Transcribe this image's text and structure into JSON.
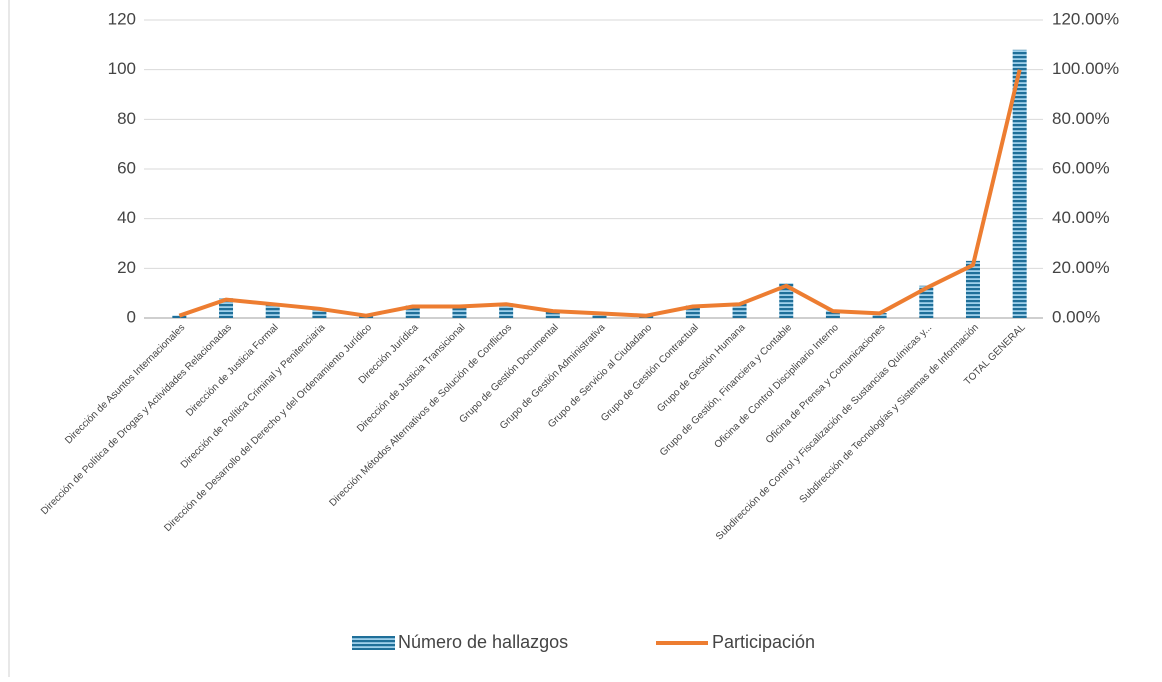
{
  "chart_data": {
    "type": "bar_line",
    "categories": [
      "Dirección de Asuntos Internacionales",
      "Dirección de Política de Drogas y Actividades Relacionadas",
      "Dirección de Justicia Formal",
      "Dirección de Política Criminal y Penitenciaria",
      "Dirección de Desarrollo del Derecho y del Ordenamiento Jurídico",
      "Dirección Jurídica",
      "Dirección de Justicia Transicional",
      "Dirección Métodos Alternativos de Solución de Conflictos",
      "Grupo de Gestión Documental",
      "Grupo de Gestión Administrativa",
      "Grupo de Servicio al Ciudadano",
      "Grupo de Gestión Contractual",
      "Grupo de Gestión Humana",
      "Grupo de Gestión, Financiera y Contable",
      "Oficina de Control Disciplinario Interno",
      "Oficina de Prensa y Comunicaciones",
      "Subdirección de Control y Fiscalización de Sustancias Químicas y...",
      "Subdirección de Tecnologías y Sistemas de Información",
      "TOTAL GENERAL"
    ],
    "series": [
      {
        "name": "Número de hallazgos",
        "color": "#1f6f99",
        "values": [
          1,
          8,
          6,
          4,
          1,
          5,
          5,
          6,
          3,
          2,
          1,
          5,
          6,
          14,
          3,
          2,
          13,
          23,
          108
        ]
      },
      {
        "name": "Participación",
        "color": "#ed7d31",
        "axis": "y2",
        "values": [
          0.93,
          7.41,
          5.56,
          3.7,
          0.93,
          4.63,
          4.63,
          5.56,
          2.78,
          1.85,
          0.93,
          4.63,
          5.56,
          12.96,
          2.78,
          1.85,
          12.04,
          21.3,
          100
        ]
      }
    ],
    "ylim": [
      0,
      120
    ],
    "yticks": [
      0,
      20,
      40,
      60,
      80,
      100,
      120
    ],
    "y2lim": [
      0,
      120
    ],
    "y2ticks": [
      {
        "value": 0,
        "label": "0.00%"
      },
      {
        "value": 20,
        "label": "20.00%"
      },
      {
        "value": 40,
        "label": "40.00%"
      },
      {
        "value": 60,
        "label": "60.00%"
      },
      {
        "value": 80,
        "label": "80.00%"
      },
      {
        "value": 100,
        "label": "100.00%"
      },
      {
        "value": 120,
        "label": "120.00%"
      }
    ],
    "grid": true,
    "legend": "bottom"
  }
}
